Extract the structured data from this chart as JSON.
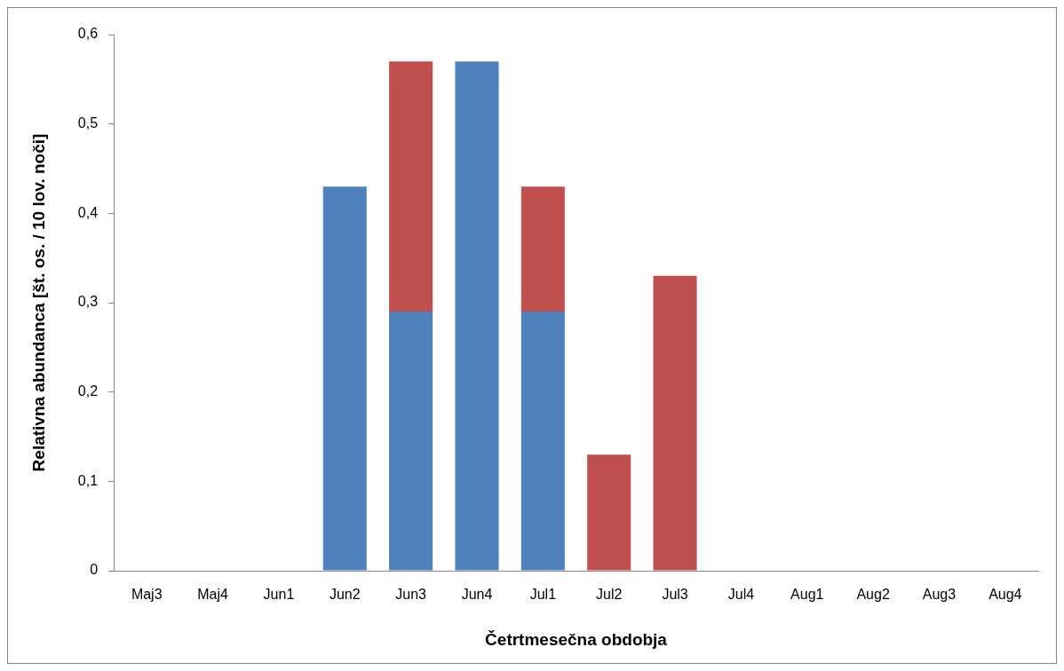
{
  "chart_data": {
    "type": "bar",
    "stacked": true,
    "xlabel": "Četrtmesečna obdobja",
    "ylabel": "Relativna abundanca [št. os. / 10 lov. noči]",
    "categories": [
      "Maj3",
      "Maj4",
      "Jun1",
      "Jun2",
      "Jun3",
      "Jun4",
      "Jul1",
      "Jul2",
      "Jul3",
      "Jul4",
      "Aug1",
      "Aug2",
      "Aug3",
      "Aug4"
    ],
    "series": [
      {
        "color": "#4f81bd",
        "values": [
          0,
          0,
          0,
          0.43,
          0.29,
          0.57,
          0.29,
          0,
          0,
          0,
          0,
          0,
          0,
          0
        ]
      },
      {
        "color": "#c0504d",
        "values": [
          0,
          0,
          0,
          0,
          0.28,
          0,
          0.14,
          0.13,
          0.33,
          0,
          0,
          0,
          0,
          0
        ]
      }
    ],
    "ylim": [
      0,
      0.6
    ],
    "yticks": [
      0,
      {
        "value": 0.1,
        "label": "0,1"
      },
      {
        "value": 0.2,
        "label": "0,2"
      },
      {
        "value": 0.3,
        "label": "0,3"
      },
      {
        "value": 0.4,
        "label": "0,4"
      },
      {
        "value": 0.5,
        "label": "0,5"
      },
      {
        "value": 0.6,
        "label": "0,6"
      }
    ],
    "grid": false,
    "legend": false
  }
}
